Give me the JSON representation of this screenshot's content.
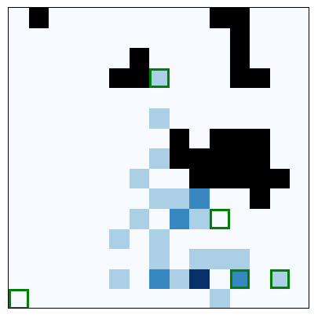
{
  "grid": {
    "rows": 15,
    "cols": 15,
    "empty_color": "#f7fbff",
    "border_color": "#000000",
    "palette": {
      "wall": "#000000",
      "light": "#abd0e6",
      "medium": "#3787c0",
      "dark": "#08306b"
    }
  },
  "cells": [
    {
      "row": 0,
      "col": 1,
      "kind": "wall"
    },
    {
      "row": 0,
      "col": 10,
      "kind": "wall"
    },
    {
      "row": 0,
      "col": 11,
      "kind": "wall"
    },
    {
      "row": 1,
      "col": 11,
      "kind": "wall"
    },
    {
      "row": 2,
      "col": 6,
      "kind": "wall"
    },
    {
      "row": 2,
      "col": 11,
      "kind": "wall"
    },
    {
      "row": 3,
      "col": 5,
      "kind": "wall"
    },
    {
      "row": 3,
      "col": 6,
      "kind": "wall"
    },
    {
      "row": 3,
      "col": 7,
      "kind": "light"
    },
    {
      "row": 3,
      "col": 11,
      "kind": "wall"
    },
    {
      "row": 3,
      "col": 12,
      "kind": "wall"
    },
    {
      "row": 5,
      "col": 7,
      "kind": "light"
    },
    {
      "row": 6,
      "col": 8,
      "kind": "wall"
    },
    {
      "row": 6,
      "col": 10,
      "kind": "wall"
    },
    {
      "row": 6,
      "col": 11,
      "kind": "wall"
    },
    {
      "row": 6,
      "col": 12,
      "kind": "wall"
    },
    {
      "row": 7,
      "col": 7,
      "kind": "light"
    },
    {
      "row": 7,
      "col": 8,
      "kind": "wall"
    },
    {
      "row": 7,
      "col": 9,
      "kind": "wall"
    },
    {
      "row": 7,
      "col": 10,
      "kind": "wall"
    },
    {
      "row": 7,
      "col": 11,
      "kind": "wall"
    },
    {
      "row": 7,
      "col": 12,
      "kind": "wall"
    },
    {
      "row": 8,
      "col": 6,
      "kind": "light"
    },
    {
      "row": 8,
      "col": 9,
      "kind": "wall"
    },
    {
      "row": 8,
      "col": 10,
      "kind": "wall"
    },
    {
      "row": 8,
      "col": 11,
      "kind": "wall"
    },
    {
      "row": 8,
      "col": 12,
      "kind": "wall"
    },
    {
      "row": 8,
      "col": 13,
      "kind": "wall"
    },
    {
      "row": 9,
      "col": 7,
      "kind": "light"
    },
    {
      "row": 9,
      "col": 8,
      "kind": "light"
    },
    {
      "row": 9,
      "col": 9,
      "kind": "medium"
    },
    {
      "row": 9,
      "col": 12,
      "kind": "wall"
    },
    {
      "row": 10,
      "col": 6,
      "kind": "light"
    },
    {
      "row": 10,
      "col": 8,
      "kind": "medium"
    },
    {
      "row": 10,
      "col": 9,
      "kind": "light"
    },
    {
      "row": 11,
      "col": 5,
      "kind": "light"
    },
    {
      "row": 11,
      "col": 7,
      "kind": "light"
    },
    {
      "row": 12,
      "col": 7,
      "kind": "light"
    },
    {
      "row": 12,
      "col": 9,
      "kind": "light"
    },
    {
      "row": 12,
      "col": 10,
      "kind": "light"
    },
    {
      "row": 12,
      "col": 11,
      "kind": "light"
    },
    {
      "row": 13,
      "col": 5,
      "kind": "light"
    },
    {
      "row": 13,
      "col": 7,
      "kind": "medium"
    },
    {
      "row": 13,
      "col": 8,
      "kind": "light"
    },
    {
      "row": 13,
      "col": 9,
      "kind": "dark"
    },
    {
      "row": 13,
      "col": 11,
      "kind": "medium"
    },
    {
      "row": 13,
      "col": 13,
      "kind": "light"
    },
    {
      "row": 14,
      "col": 10,
      "kind": "light"
    }
  ],
  "markers": {
    "color": "#008000",
    "items": [
      {
        "row": 3,
        "col": 7
      },
      {
        "row": 10,
        "col": 10
      },
      {
        "row": 13,
        "col": 11
      },
      {
        "row": 13,
        "col": 13
      },
      {
        "row": 14,
        "col": 0
      }
    ]
  }
}
